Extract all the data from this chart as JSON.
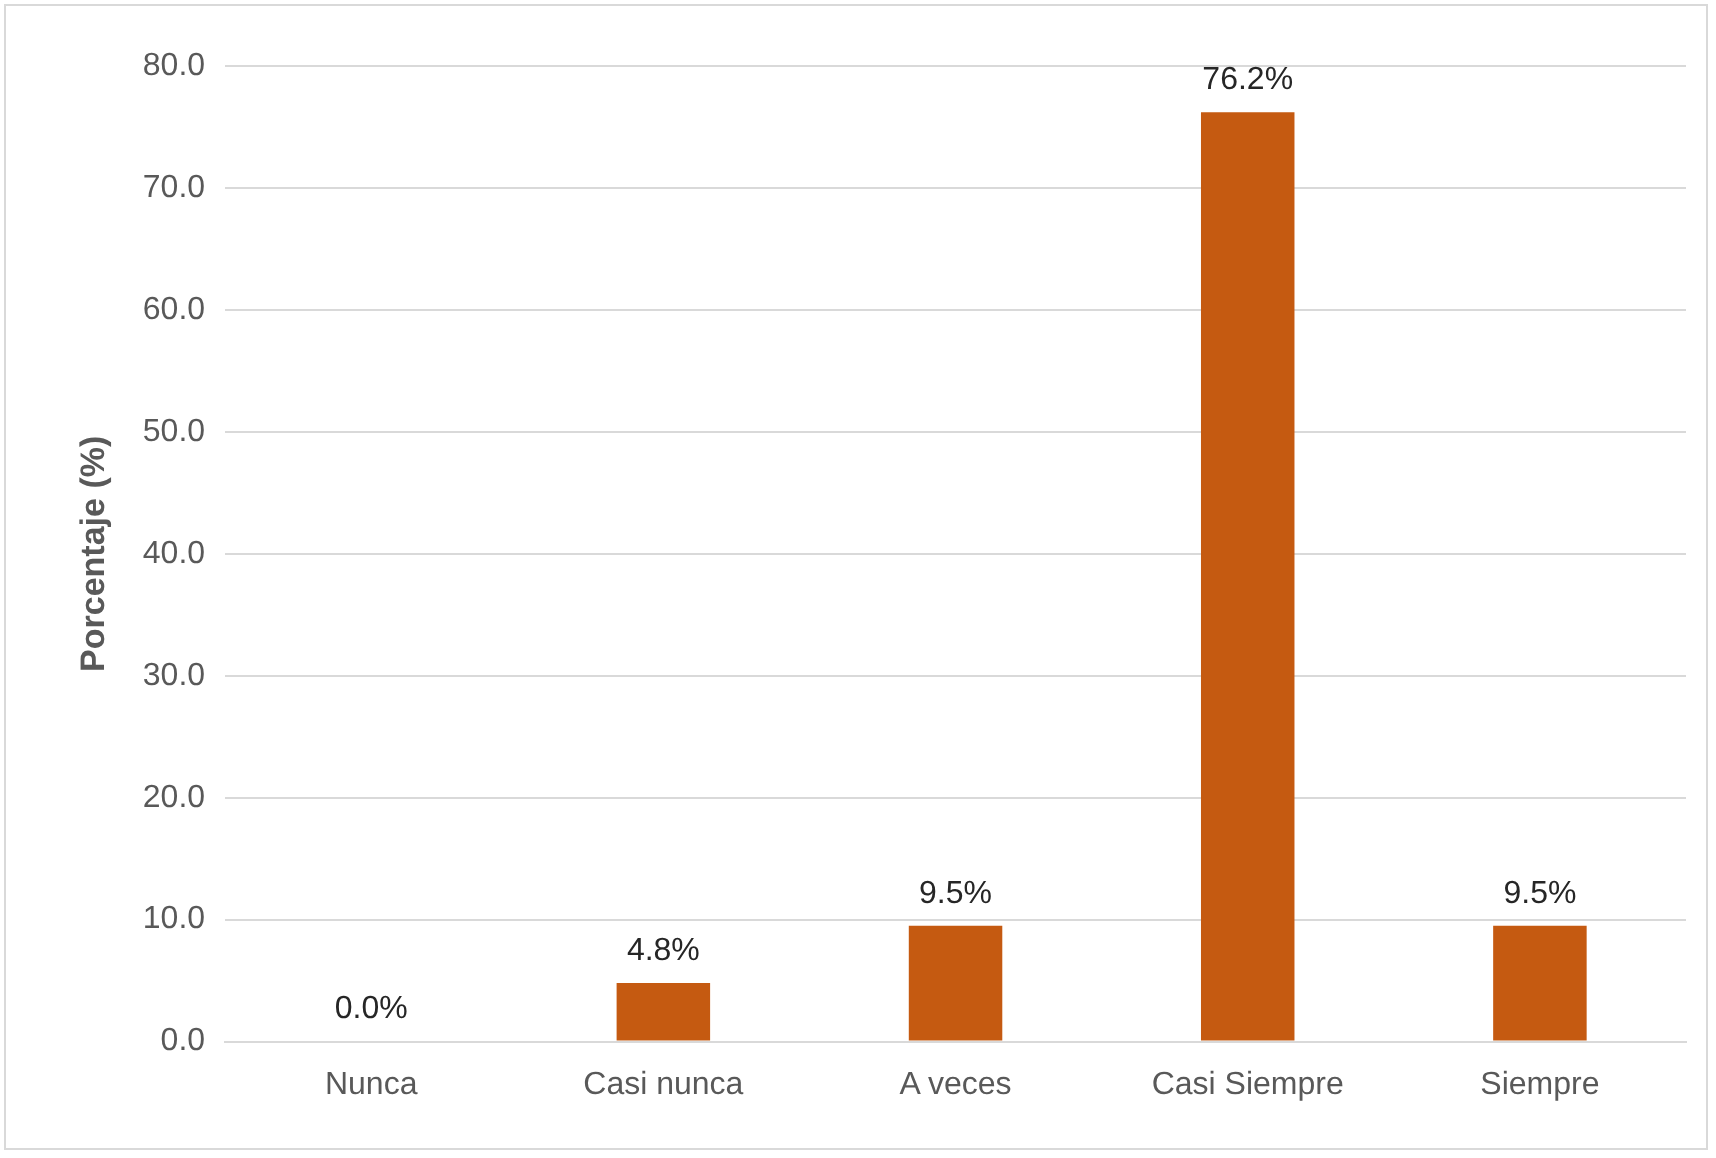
{
  "chart_data": {
    "type": "bar",
    "ylabel": "Porcentaje (%)",
    "categories": [
      "Nunca",
      "Casi nunca",
      "A veces",
      "Casi Siempre",
      "Siempre"
    ],
    "values": [
      0.0,
      4.8,
      9.5,
      76.2,
      9.5
    ],
    "value_labels": [
      "0.0%",
      "4.8%",
      "9.5%",
      "76.2%",
      "9.5%"
    ],
    "color": "#c55a11",
    "ylim": [
      0,
      80
    ],
    "yticks": [
      {
        "value": 0,
        "label": "0.0"
      },
      {
        "value": 10,
        "label": "10.0"
      },
      {
        "value": 20,
        "label": "20.0"
      },
      {
        "value": 30,
        "label": "30.0"
      },
      {
        "value": 40,
        "label": "40.0"
      },
      {
        "value": 50,
        "label": "50.0"
      },
      {
        "value": 60,
        "label": "60.0"
      },
      {
        "value": 70,
        "label": "70.0"
      },
      {
        "value": 80,
        "label": "80.0"
      }
    ],
    "grid": "y",
    "legend": false
  }
}
